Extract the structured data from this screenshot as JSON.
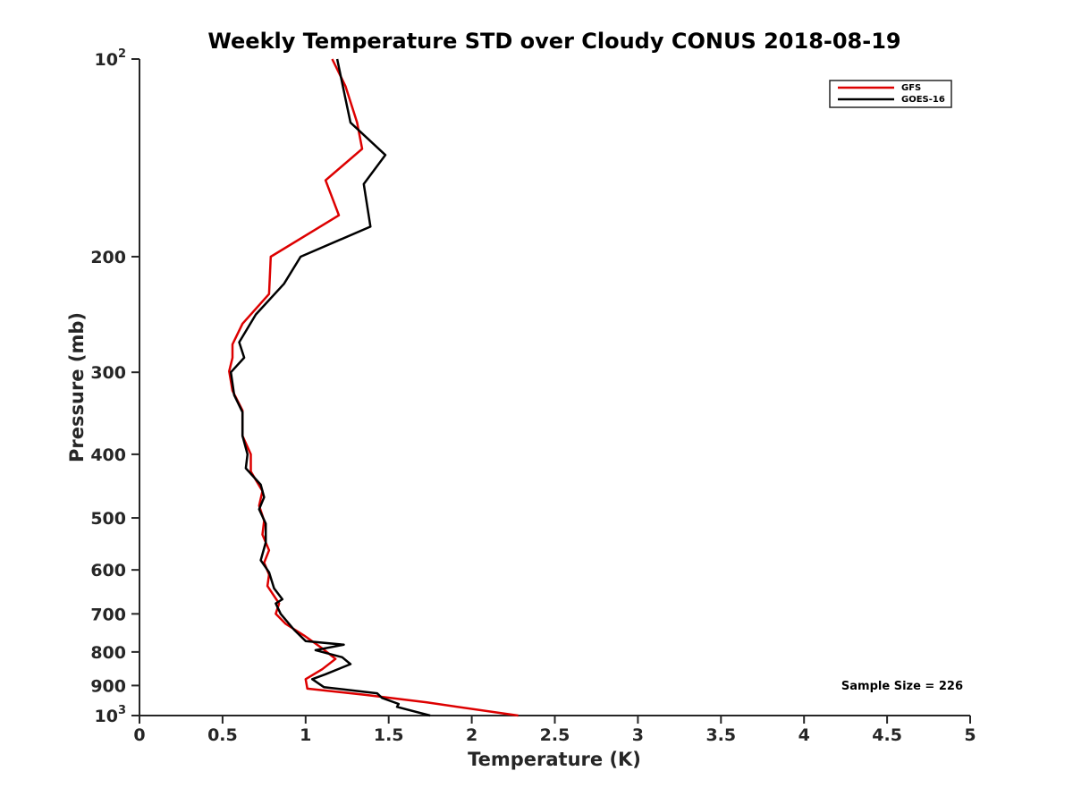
{
  "chart_data": {
    "type": "line",
    "title": "Weekly Temperature STD over Cloudy CONUS 2018-08-19",
    "xlabel": "Temperature (K)",
    "ylabel": "Pressure (mb)",
    "xlim": [
      0,
      5
    ],
    "ylim": [
      100,
      1000
    ],
    "y_scale": "log",
    "y_reversed": true,
    "xticks": [
      "0",
      "0.5",
      "1",
      "1.5",
      "2",
      "2.5",
      "3",
      "3.5",
      "4",
      "4.5",
      "5"
    ],
    "yticks": [
      {
        "value": 100,
        "base": "10",
        "exp": "2"
      },
      {
        "value": 200,
        "label": "200"
      },
      {
        "value": 300,
        "label": "300"
      },
      {
        "value": 400,
        "label": "400"
      },
      {
        "value": 500,
        "label": "500"
      },
      {
        "value": 600,
        "label": "600"
      },
      {
        "value": 700,
        "label": "700"
      },
      {
        "value": 800,
        "label": "800"
      },
      {
        "value": 900,
        "label": "900"
      },
      {
        "value": 1000,
        "base": "10",
        "exp": "3"
      }
    ],
    "legend_position": "top-right",
    "series": [
      {
        "name": "GFS",
        "color": "#dd0000",
        "points": [
          [
            1.16,
            100
          ],
          [
            1.24,
            110
          ],
          [
            1.31,
            125
          ],
          [
            1.34,
            137
          ],
          [
            1.12,
            153
          ],
          [
            1.2,
            173
          ],
          [
            0.79,
            200
          ],
          [
            0.78,
            228
          ],
          [
            0.62,
            253
          ],
          [
            0.56,
            272
          ],
          [
            0.56,
            285
          ],
          [
            0.54,
            299
          ],
          [
            0.56,
            320
          ],
          [
            0.62,
            343
          ],
          [
            0.62,
            375
          ],
          [
            0.67,
            400
          ],
          [
            0.67,
            425
          ],
          [
            0.74,
            455
          ],
          [
            0.72,
            479
          ],
          [
            0.75,
            505
          ],
          [
            0.74,
            530
          ],
          [
            0.78,
            560
          ],
          [
            0.75,
            585
          ],
          [
            0.78,
            610
          ],
          [
            0.77,
            635
          ],
          [
            0.84,
            675
          ],
          [
            0.82,
            700
          ],
          [
            0.88,
            725
          ],
          [
            0.99,
            755
          ],
          [
            1.1,
            790
          ],
          [
            1.18,
            820
          ],
          [
            1.1,
            850
          ],
          [
            1.0,
            880
          ],
          [
            1.01,
            910
          ],
          [
            1.36,
            930
          ],
          [
            1.73,
            955
          ],
          [
            2.28,
            1000
          ]
        ]
      },
      {
        "name": "GOES-16",
        "color": "#000000",
        "points": [
          [
            1.19,
            100
          ],
          [
            1.24,
            115
          ],
          [
            1.27,
            125
          ],
          [
            1.48,
            140
          ],
          [
            1.35,
            155
          ],
          [
            1.39,
            180
          ],
          [
            0.97,
            200
          ],
          [
            0.87,
            220
          ],
          [
            0.7,
            245
          ],
          [
            0.6,
            270
          ],
          [
            0.63,
            285
          ],
          [
            0.55,
            300
          ],
          [
            0.57,
            325
          ],
          [
            0.62,
            345
          ],
          [
            0.62,
            375
          ],
          [
            0.65,
            400
          ],
          [
            0.64,
            420
          ],
          [
            0.73,
            445
          ],
          [
            0.75,
            465
          ],
          [
            0.72,
            485
          ],
          [
            0.76,
            510
          ],
          [
            0.76,
            545
          ],
          [
            0.73,
            580
          ],
          [
            0.78,
            605
          ],
          [
            0.81,
            640
          ],
          [
            0.86,
            665
          ],
          [
            0.82,
            675
          ],
          [
            0.85,
            700
          ],
          [
            0.93,
            740
          ],
          [
            1.0,
            770
          ],
          [
            1.23,
            780
          ],
          [
            1.06,
            795
          ],
          [
            1.22,
            815
          ],
          [
            1.27,
            835
          ],
          [
            1.12,
            865
          ],
          [
            1.04,
            880
          ],
          [
            1.11,
            905
          ],
          [
            1.43,
            925
          ],
          [
            1.46,
            940
          ],
          [
            1.56,
            960
          ],
          [
            1.55,
            970
          ],
          [
            1.75,
            1000
          ]
        ]
      }
    ],
    "annotations": [
      "Sample Size = 226"
    ]
  }
}
